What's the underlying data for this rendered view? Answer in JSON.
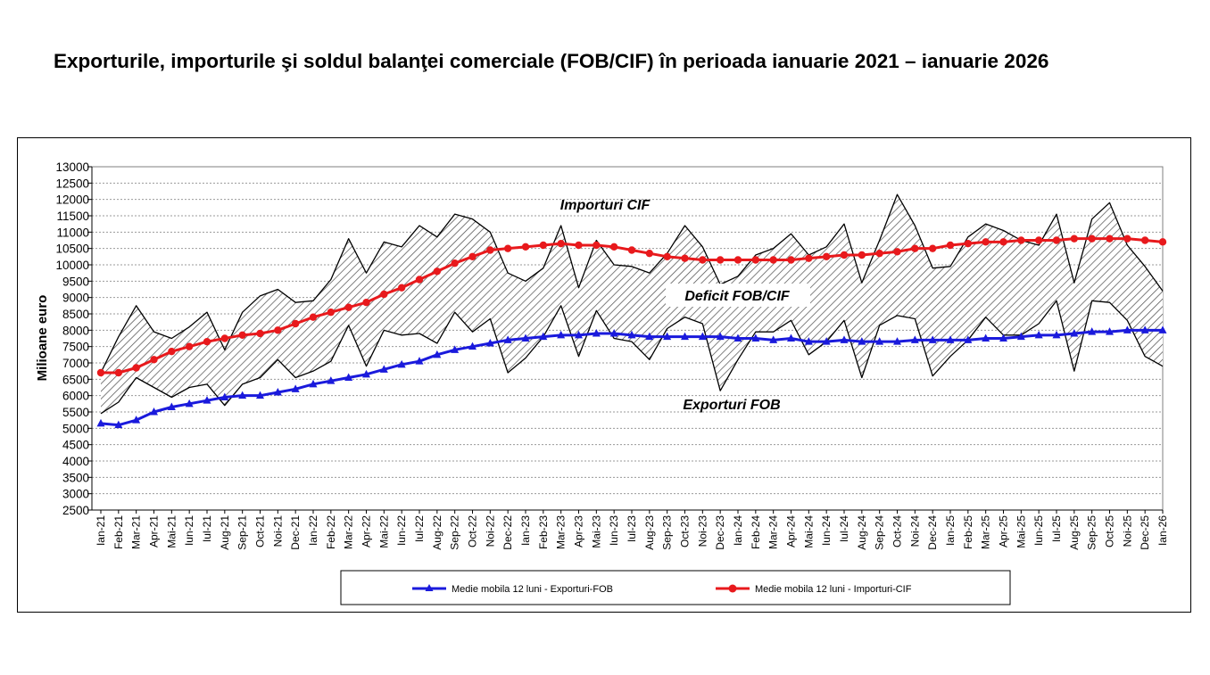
{
  "title": "Exporturile, importurile şi soldul balanţei comerciale (FOB/CIF) în perioada ianuarie 2021 – ianuarie 2026",
  "chart_data": {
    "type": "line",
    "title": "Exporturile, importurile şi soldul balanţei comerciale (FOB/CIF) în perioada ianuarie 2021 – ianuarie 2026",
    "ylabel": "Milioane  euro",
    "xlabel": "",
    "ylim": [
      2500,
      13000
    ],
    "ytick_step": 500,
    "grid": "horizontal-dotted",
    "legend": "bottom-center",
    "categories": [
      "Ian-21",
      "Feb-21",
      "Mar-21",
      "Apr-21",
      "Mai-21",
      "Iun-21",
      "Iul-21",
      "Aug-21",
      "Sep-21",
      "Oct-21",
      "Noi-21",
      "Dec-21",
      "Ian-22",
      "Feb-22",
      "Mar-22",
      "Apr-22",
      "Mai-22",
      "Iun-22",
      "Iul-22",
      "Aug-22",
      "Sep-22",
      "Oct-22",
      "Noi-22",
      "Dec-22",
      "Ian-23",
      "Feb-23",
      "Mar-23",
      "Apr-23",
      "Mai-23",
      "Iun-23",
      "Iul-23",
      "Aug-23",
      "Sep-23",
      "Oct-23",
      "Noi-23",
      "Dec-23",
      "Ian-24",
      "Feb-24",
      "Mar-24",
      "Apr-24",
      "Mai-24",
      "Iun-24",
      "Iul-24",
      "Aug-24",
      "Sep-24",
      "Oct-24",
      "Noi-24",
      "Dec-24",
      "Ian-25",
      "Feb-25",
      "Mar-25",
      "Apr-25",
      "Mai-25",
      "Iun-25",
      "Iul-25",
      "Aug-25",
      "Sep-25",
      "Oct-25",
      "Noi-25",
      "Dec-25",
      "Ian-26"
    ],
    "series": [
      {
        "name": "Importuri CIF",
        "role": "monthly-imports",
        "color": "#000000",
        "values": [
          6700,
          7800,
          8750,
          7950,
          7750,
          8100,
          8550,
          7400,
          8550,
          9050,
          9250,
          8850,
          8900,
          9550,
          10800,
          9750,
          10700,
          10550,
          11200,
          10850,
          11550,
          11400,
          11000,
          9750,
          9500,
          9900,
          11200,
          9300,
          10750,
          10000,
          9950,
          9750,
          10350,
          11200,
          10550,
          9400,
          9650,
          10300,
          10500,
          10950,
          10300,
          10550,
          11250,
          9450,
          10750,
          12150,
          11200,
          9900,
          9950,
          10850,
          11250,
          11050,
          10750,
          10600,
          11550,
          9450,
          11400,
          11900,
          10600,
          9950,
          9200
        ]
      },
      {
        "name": "Exporturi FOB",
        "role": "monthly-exports",
        "color": "#000000",
        "values": [
          5450,
          5800,
          6550,
          6250,
          5950,
          6250,
          6350,
          5700,
          6350,
          6550,
          7100,
          6550,
          6750,
          7050,
          8150,
          6900,
          8000,
          7850,
          7900,
          7600,
          8550,
          7950,
          8350,
          6700,
          7150,
          7800,
          8750,
          7200,
          8600,
          7750,
          7650,
          7100,
          8050,
          8400,
          8200,
          6150,
          7100,
          7950,
          7950,
          8300,
          7250,
          7650,
          8300,
          6550,
          8150,
          8450,
          8350,
          6600,
          7200,
          7700,
          8400,
          7850,
          7850,
          8200,
          8900,
          6750,
          8900,
          8850,
          8300,
          7200,
          6900
        ]
      },
      {
        "name": "Medie mobila 12 luni - Exporturi-FOB",
        "role": "moving-average-exports",
        "color": "#1a1adc",
        "marker": "triangle",
        "values": [
          5150,
          5100,
          5250,
          5500,
          5650,
          5750,
          5850,
          5950,
          6000,
          6000,
          6100,
          6200,
          6350,
          6450,
          6550,
          6650,
          6800,
          6950,
          7050,
          7250,
          7400,
          7500,
          7600,
          7700,
          7750,
          7800,
          7850,
          7850,
          7900,
          7900,
          7850,
          7800,
          7800,
          7800,
          7800,
          7800,
          7750,
          7750,
          7700,
          7750,
          7650,
          7650,
          7700,
          7650,
          7650,
          7650,
          7700,
          7700,
          7700,
          7700,
          7750,
          7750,
          7800,
          7850,
          7850,
          7900,
          7950,
          7950,
          8000,
          8000,
          8000
        ]
      },
      {
        "name": "Medie mobila 12 luni - Importuri-CIF",
        "role": "moving-average-imports",
        "color": "#e8191c",
        "marker": "circle",
        "values": [
          6700,
          6700,
          6850,
          7100,
          7350,
          7500,
          7650,
          7750,
          7850,
          7900,
          8000,
          8200,
          8400,
          8550,
          8700,
          8850,
          9100,
          9300,
          9550,
          9800,
          10050,
          10250,
          10450,
          10500,
          10550,
          10600,
          10650,
          10600,
          10600,
          10550,
          10450,
          10350,
          10250,
          10200,
          10150,
          10150,
          10150,
          10150,
          10150,
          10150,
          10200,
          10250,
          10300,
          10300,
          10350,
          10400,
          10500,
          10500,
          10600,
          10650,
          10700,
          10700,
          10750,
          10750,
          10750,
          10800,
          10800,
          10800,
          10800,
          10750,
          10700
        ]
      }
    ],
    "annotations": [
      "Importuri CIF",
      "Deficit FOB/CIF",
      "Exporturi FOB"
    ]
  }
}
